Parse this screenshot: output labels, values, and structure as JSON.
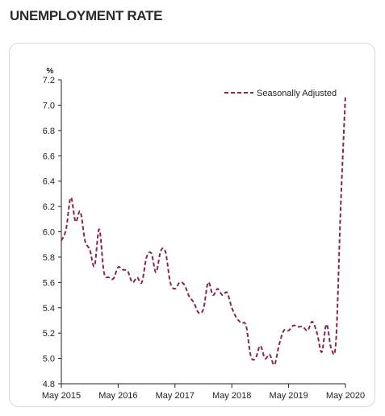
{
  "page": {
    "title": "UNEMPLOYMENT RATE"
  },
  "chart_data": {
    "type": "line",
    "ylabel": "%",
    "ylim": [
      4.8,
      7.2
    ],
    "y_ticks": [
      "7.2",
      "7.0",
      "6.8",
      "6.6",
      "6.4",
      "6.2",
      "6.0",
      "5.8",
      "5.6",
      "5.4",
      "5.2",
      "5.0",
      "4.8"
    ],
    "x_range": [
      "May 2015",
      "May 2020"
    ],
    "x_ticks": [
      "May 2015",
      "May 2016",
      "May 2017",
      "May 2018",
      "May 2019",
      "May 2020"
    ],
    "legend": {
      "position": "top-right"
    },
    "grid": false,
    "series": [
      {
        "name": "Seasonally Adjusted",
        "color": "#8b2252",
        "style": "dashed",
        "x": [
          "2015-05",
          "2015-06",
          "2015-07",
          "2015-08",
          "2015-09",
          "2015-10",
          "2015-11",
          "2015-12",
          "2016-01",
          "2016-02",
          "2016-03",
          "2016-04",
          "2016-05",
          "2016-06",
          "2016-07",
          "2016-08",
          "2016-09",
          "2016-10",
          "2016-11",
          "2016-12",
          "2017-01",
          "2017-02",
          "2017-03",
          "2017-04",
          "2017-05",
          "2017-06",
          "2017-07",
          "2017-08",
          "2017-09",
          "2017-10",
          "2017-11",
          "2017-12",
          "2018-01",
          "2018-02",
          "2018-03",
          "2018-04",
          "2018-05",
          "2018-06",
          "2018-07",
          "2018-08",
          "2018-09",
          "2018-10",
          "2018-11",
          "2018-12",
          "2019-01",
          "2019-02",
          "2019-03",
          "2019-04",
          "2019-05",
          "2019-06",
          "2019-07",
          "2019-08",
          "2019-09",
          "2019-10",
          "2019-11",
          "2019-12",
          "2020-01",
          "2020-02",
          "2020-03",
          "2020-04",
          "2020-05"
        ],
        "values": [
          5.93,
          6.02,
          6.27,
          6.08,
          6.16,
          5.93,
          5.86,
          5.73,
          6.02,
          5.68,
          5.64,
          5.63,
          5.72,
          5.7,
          5.69,
          5.6,
          5.64,
          5.6,
          5.8,
          5.83,
          5.68,
          5.85,
          5.84,
          5.6,
          5.55,
          5.6,
          5.58,
          5.49,
          5.44,
          5.36,
          5.39,
          5.6,
          5.5,
          5.55,
          5.5,
          5.52,
          5.4,
          5.32,
          5.28,
          5.26,
          5.02,
          5.0,
          5.1,
          5.0,
          5.03,
          4.95,
          5.11,
          5.22,
          5.22,
          5.26,
          5.25,
          5.25,
          5.22,
          5.29,
          5.2,
          5.05,
          5.27,
          5.08,
          5.14,
          6.2,
          7.08
        ]
      }
    ]
  }
}
